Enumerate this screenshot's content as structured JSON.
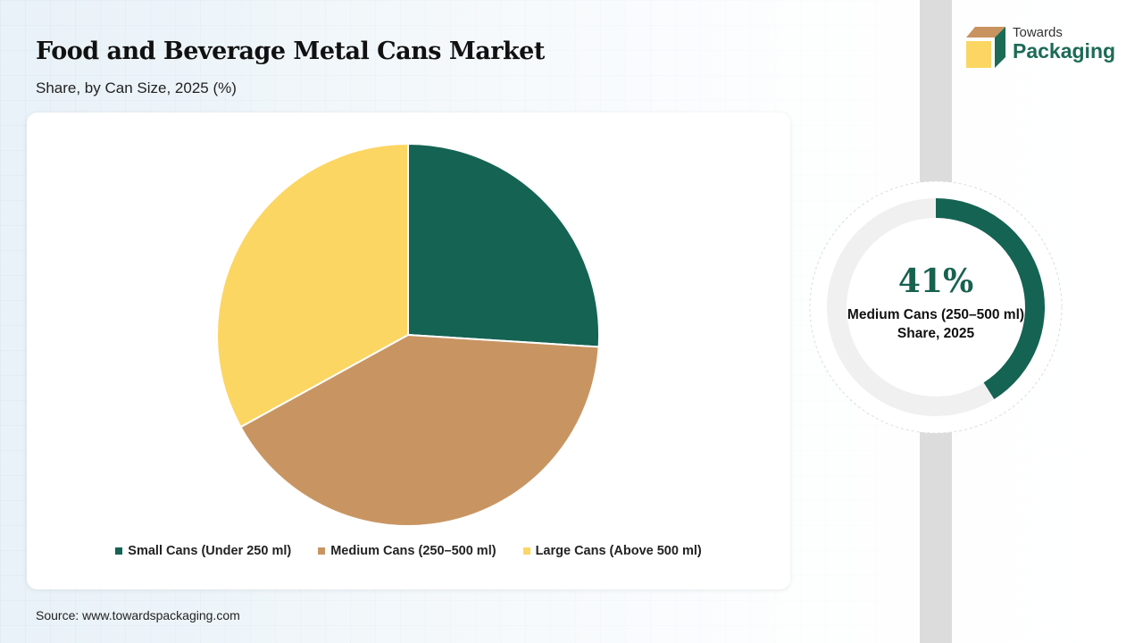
{
  "header": {
    "title": "Food and Beverage Metal Cans Market",
    "subtitle": "Share, by Can Size, 2025 (%)"
  },
  "logo": {
    "line1": "Towards",
    "line2": "Packaging"
  },
  "chart_data": {
    "type": "pie",
    "title": "Food and Beverage Metal Cans Market",
    "subtitle": "Share, by Can Size, 2025 (%)",
    "categories": [
      "Small Cans (Under 250 ml)",
      "Medium Cans (250–500 ml)",
      "Large Cans (Above 500 ml)"
    ],
    "values": [
      26,
      41,
      33
    ],
    "colors": [
      "#156353",
      "#c89562",
      "#fcd663"
    ],
    "legend_position": "bottom"
  },
  "highlight": {
    "value": 41,
    "value_label": "41%",
    "label": "Medium Cans (250–500 ml) Share, 2025",
    "color": "#156353",
    "track_color": "#f0f0f0"
  },
  "footer": {
    "source": "Source: www.towardspackaging.com"
  }
}
